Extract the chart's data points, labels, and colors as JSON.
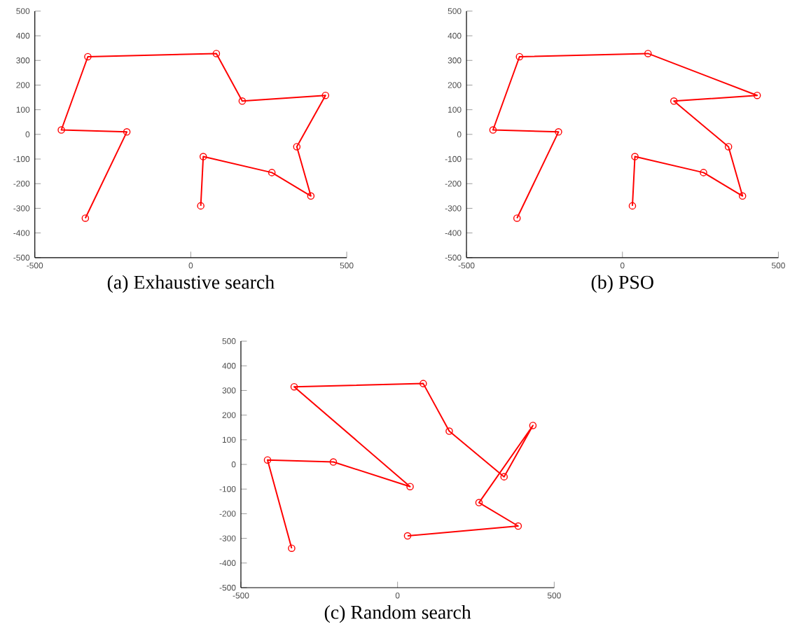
{
  "chart_data": [
    {
      "type": "line",
      "title": "(a) Exhaustive search",
      "marker": "circle",
      "line_style": "solid",
      "grid": false,
      "xlim": [
        -500,
        500
      ],
      "ylim": [
        -500,
        500
      ],
      "xticks": [
        -500,
        0,
        500
      ],
      "yticks": [
        -500,
        -400,
        -300,
        -200,
        -100,
        0,
        100,
        200,
        300,
        400,
        500
      ],
      "series": [
        {
          "color": "#ff0000",
          "x": [
            -338,
            -205,
            -415,
            -330,
            82,
            165,
            432,
            340,
            385,
            260,
            40,
            32
          ],
          "values": [
            -340,
            10,
            18,
            315,
            328,
            135,
            158,
            -50,
            -250,
            -155,
            -90,
            -290
          ]
        }
      ]
    },
    {
      "type": "line",
      "title": "(b) PSO",
      "marker": "circle",
      "line_style": "solid",
      "grid": false,
      "xlim": [
        -500,
        500
      ],
      "ylim": [
        -500,
        500
      ],
      "xticks": [
        -500,
        0,
        500
      ],
      "yticks": [
        -500,
        -400,
        -300,
        -200,
        -100,
        0,
        100,
        200,
        300,
        400,
        500
      ],
      "series": [
        {
          "color": "#ff0000",
          "x": [
            -338,
            -205,
            -415,
            -330,
            82,
            432,
            165,
            340,
            385,
            260,
            40,
            32
          ],
          "values": [
            -340,
            10,
            18,
            315,
            328,
            158,
            135,
            -50,
            -250,
            -155,
            -90,
            -290
          ]
        }
      ]
    },
    {
      "type": "line",
      "title": "(c) Random search",
      "marker": "circle",
      "line_style": "solid",
      "grid": false,
      "xlim": [
        -500,
        500
      ],
      "ylim": [
        -500,
        500
      ],
      "xticks": [
        -500,
        0,
        500
      ],
      "yticks": [
        -500,
        -400,
        -300,
        -200,
        -100,
        0,
        100,
        200,
        300,
        400,
        500
      ],
      "series": [
        {
          "color": "#ff0000",
          "x": [
            -338,
            -415,
            -205,
            40,
            -330,
            82,
            165,
            340,
            432,
            260,
            385,
            32
          ],
          "values": [
            -340,
            18,
            10,
            -90,
            315,
            328,
            135,
            -50,
            158,
            -155,
            -250,
            -290
          ]
        }
      ]
    }
  ]
}
